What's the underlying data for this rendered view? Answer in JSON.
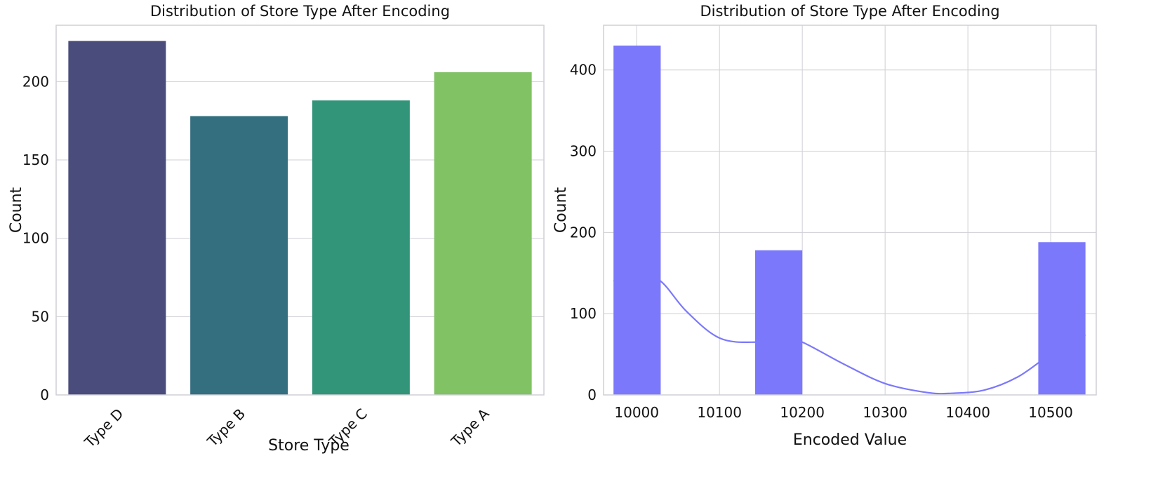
{
  "chart_data": [
    {
      "type": "bar",
      "title": "Distribution of Store Type After Encoding",
      "xlabel": "Store Type",
      "ylabel": "Count",
      "categories": [
        "Type D",
        "Type B",
        "Type C",
        "Type A"
      ],
      "values": [
        226,
        178,
        188,
        206
      ],
      "colors": [
        "#4a4c7c",
        "#346f80",
        "#32957a",
        "#80c264"
      ],
      "ylim": [
        0,
        236
      ],
      "yticks": [
        0,
        50,
        100,
        150,
        200
      ],
      "grid": true
    },
    {
      "type": "bar",
      "subtype": "histogram-with-kde",
      "title": "Distribution of Store Type After Encoding",
      "xlabel": "Encoded Value",
      "ylabel": "Count",
      "color": "#7b78fb",
      "bins": [
        {
          "x0": 9972,
          "x1": 10029,
          "count": 430
        },
        {
          "x0": 10029,
          "x1": 10086,
          "count": 0
        },
        {
          "x0": 10086,
          "x1": 10143,
          "count": 0
        },
        {
          "x0": 10143,
          "x1": 10200,
          "count": 178
        },
        {
          "x0": 10200,
          "x1": 10257,
          "count": 0
        },
        {
          "x0": 10257,
          "x1": 10314,
          "count": 0
        },
        {
          "x0": 10314,
          "x1": 10371,
          "count": 0
        },
        {
          "x0": 10371,
          "x1": 10428,
          "count": 0
        },
        {
          "x0": 10428,
          "x1": 10485,
          "count": 0
        },
        {
          "x0": 10485,
          "x1": 10542,
          "count": 188
        }
      ],
      "kde": {
        "x": [
          9972,
          10000,
          10029,
          10060,
          10100,
          10143,
          10175,
          10200,
          10250,
          10300,
          10350,
          10380,
          10420,
          10460,
          10500,
          10542
        ],
        "y": [
          140,
          152,
          140,
          103,
          70,
          65,
          71,
          65,
          38,
          14,
          3,
          2,
          6,
          22,
          50,
          74
        ]
      },
      "xlim": [
        9960,
        10555
      ],
      "ylim": [
        0,
        455
      ],
      "xticks": [
        10000,
        10100,
        10200,
        10300,
        10400,
        10500
      ],
      "yticks": [
        0,
        100,
        200,
        300,
        400
      ],
      "grid": true
    }
  ]
}
